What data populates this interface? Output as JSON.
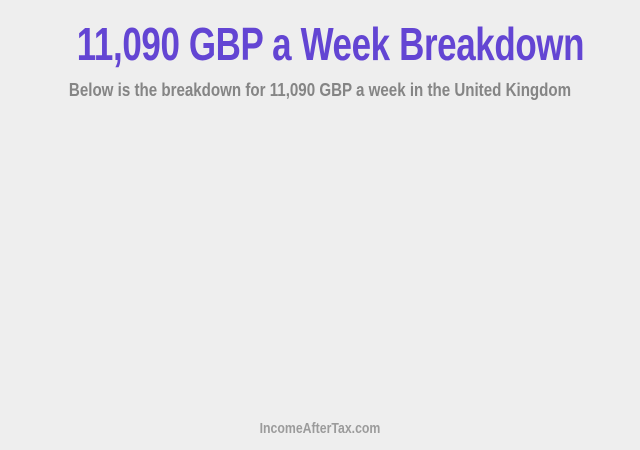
{
  "page": {
    "background_color": "#eeeeee",
    "title": "11,090 GBP a Week Breakdown",
    "title_color": "#6345d3",
    "subtitle": "Below is the breakdown for 11,090 GBP a week in the United Kingdom",
    "subtitle_color": "#858585",
    "footer": {
      "brand": "IncomeAfterTax.com",
      "color": "#9b9b9b"
    }
  }
}
